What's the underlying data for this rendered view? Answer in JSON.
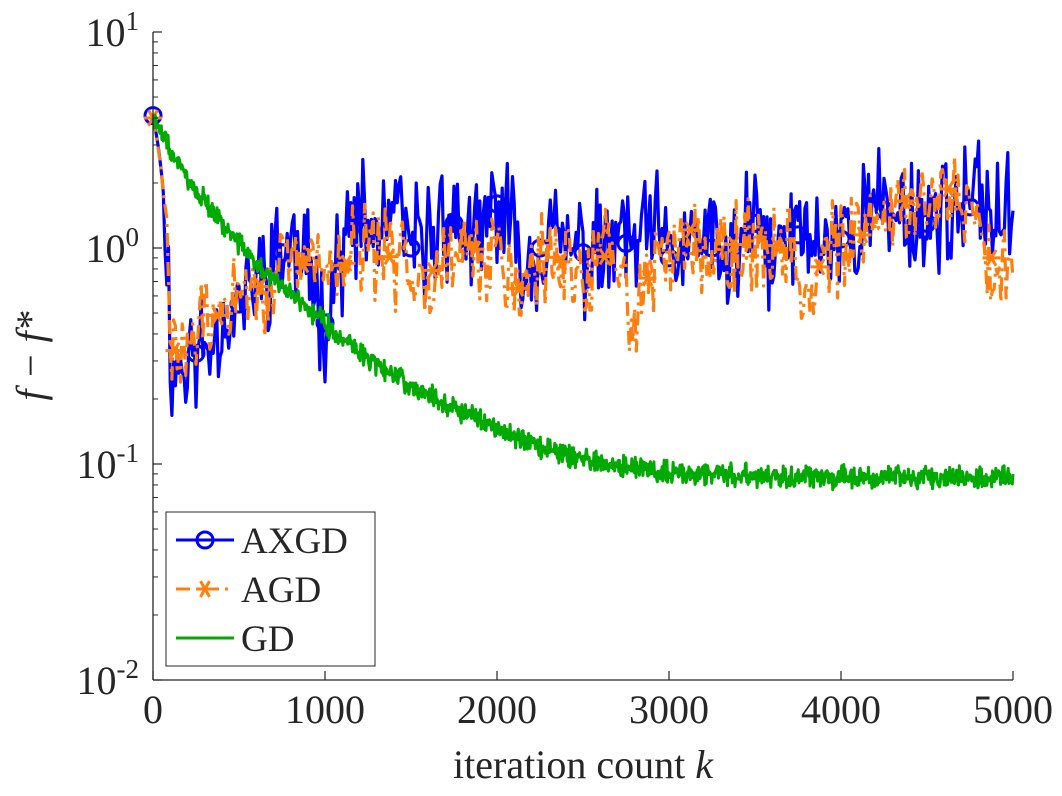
{
  "chart_data": {
    "type": "line",
    "title": "",
    "xlabel": "iteration count k",
    "ylabel": "f − f*",
    "xlim": [
      0,
      5000
    ],
    "ylim": [
      0.01,
      10
    ],
    "yscale": "log",
    "grid": false,
    "legend_position": "bottom-left",
    "x_ticks": [
      {
        "value": 0,
        "label": "0"
      },
      {
        "value": 1000,
        "label": "1000"
      },
      {
        "value": 2000,
        "label": "2000"
      },
      {
        "value": 3000,
        "label": "3000"
      },
      {
        "value": 4000,
        "label": "4000"
      },
      {
        "value": 5000,
        "label": "5000"
      }
    ],
    "y_ticks": [
      {
        "value": 0.01,
        "base": "10",
        "exp": "-2"
      },
      {
        "value": 0.1,
        "base": "10",
        "exp": "-1"
      },
      {
        "value": 1,
        "base": "10",
        "exp": "0"
      },
      {
        "value": 10,
        "base": "10",
        "exp": "1"
      }
    ],
    "x": [
      0,
      100,
      200,
      300,
      400,
      500,
      600,
      700,
      800,
      900,
      1000,
      1100,
      1200,
      1300,
      1400,
      1500,
      1600,
      1700,
      1800,
      1900,
      2000,
      2100,
      2200,
      2300,
      2400,
      2500,
      2600,
      2700,
      2800,
      2900,
      3000,
      3100,
      3200,
      3300,
      3400,
      3500,
      3600,
      3700,
      3800,
      3900,
      4000,
      4100,
      4200,
      4300,
      4400,
      4500,
      4600,
      4700,
      4800,
      4900,
      5000
    ],
    "series": [
      {
        "name": "AXGD",
        "color": "#0000ff",
        "line_style": "solid",
        "marker": "circle",
        "marker_x": [
          0,
          250,
          500,
          750,
          1000,
          1250,
          1500,
          1750,
          2000,
          2250,
          2500,
          2750,
          3000,
          3250,
          3500,
          3750,
          4000,
          4250,
          4500,
          4750
        ],
        "values": [
          4.1,
          0.28,
          0.3,
          0.35,
          0.45,
          0.55,
          0.7,
          0.9,
          1.0,
          0.8,
          0.45,
          1.0,
          1.3,
          1.1,
          1.5,
          1.0,
          1.1,
          1.4,
          1.2,
          1.0,
          1.6,
          1.1,
          0.8,
          1.2,
          1.0,
          0.95,
          0.9,
          1.1,
          1.0,
          1.2,
          0.9,
          1.0,
          1.2,
          0.8,
          1.0,
          1.3,
          0.9,
          1.1,
          1.2,
          1.0,
          1.1,
          1.3,
          1.6,
          1.4,
          1.5,
          1.3,
          1.6,
          1.4,
          1.7,
          1.5,
          1.3
        ]
      },
      {
        "name": "AGD",
        "color": "#ff7f0e",
        "line_style": "dashdot",
        "marker": "asterisk",
        "marker_x": [
          0,
          125,
          375,
          625,
          875,
          1125,
          1375,
          1625,
          1875,
          2125,
          2375,
          2625,
          2875,
          3125,
          3375,
          3625,
          3875,
          4125,
          4375,
          4625,
          4875
        ],
        "values": [
          4.0,
          0.33,
          0.35,
          0.45,
          0.5,
          0.6,
          0.65,
          0.7,
          0.8,
          0.85,
          0.9,
          0.8,
          1.0,
          0.95,
          0.9,
          0.85,
          0.75,
          0.9,
          0.95,
          1.0,
          0.9,
          0.6,
          0.8,
          0.9,
          0.85,
          0.7,
          0.95,
          0.8,
          0.5,
          0.8,
          0.9,
          1.3,
          0.95,
          1.0,
          1.05,
          0.95,
          1.0,
          1.1,
          0.57,
          0.9,
          1.0,
          1.1,
          1.3,
          1.5,
          1.7,
          1.6,
          2.0,
          1.5,
          1.2,
          0.8,
          0.9
        ]
      },
      {
        "name": "GD",
        "color": "#00aa00",
        "line_style": "solid",
        "marker": "none",
        "values": [
          4.0,
          2.8,
          2.1,
          1.65,
          1.3,
          1.05,
          0.85,
          0.72,
          0.62,
          0.53,
          0.45,
          0.38,
          0.33,
          0.29,
          0.26,
          0.23,
          0.21,
          0.19,
          0.175,
          0.16,
          0.148,
          0.135,
          0.125,
          0.117,
          0.11,
          0.105,
          0.1,
          0.097,
          0.095,
          0.093,
          0.092,
          0.091,
          0.09,
          0.09,
          0.089,
          0.089,
          0.088,
          0.088,
          0.088,
          0.087,
          0.087,
          0.087,
          0.087,
          0.087,
          0.086,
          0.086,
          0.086,
          0.086,
          0.086,
          0.086,
          0.086
        ]
      }
    ]
  }
}
